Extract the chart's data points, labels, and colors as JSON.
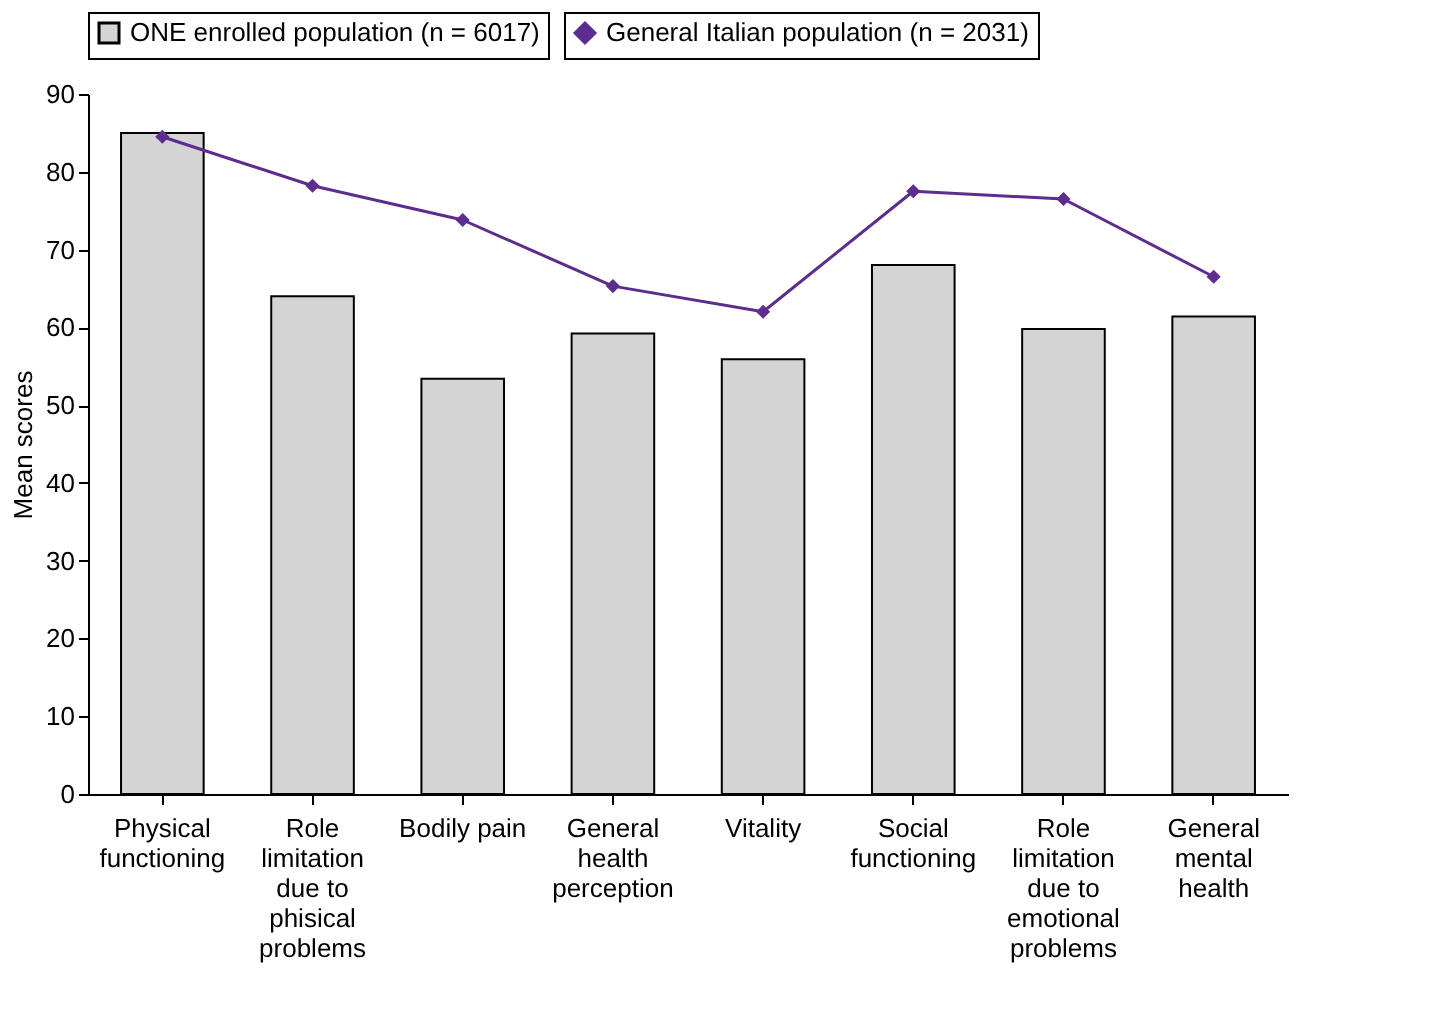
{
  "chart_data": {
    "type": "bar",
    "ylabel": "Mean scores",
    "categories": [
      "Physical functioning",
      "Role limitation due to phisical problems",
      "Bodily pain",
      "General health perception",
      "Vitality",
      "Social functioning",
      "Role limitation due to emotional problems",
      "General mental health"
    ],
    "series": [
      {
        "name": "ONE enrolled population (n = 6017)",
        "color": "#d4d4d4",
        "values": [
          85,
          64,
          53.4,
          59.2,
          55.9,
          68,
          59.8,
          61.4
        ]
      },
      {
        "name": "General Italian population (n = 2031)",
        "type": "line",
        "color": "#5b2d8e",
        "marker": "diamond",
        "values": [
          84.5,
          78.2,
          73.8,
          65.3,
          62,
          77.5,
          76.5,
          66.5
        ]
      }
    ],
    "ylim": [
      0,
      90
    ],
    "yticks": [
      0,
      10,
      20,
      30,
      40,
      50,
      60,
      70,
      80,
      90
    ],
    "grid": false,
    "legend": "top"
  }
}
